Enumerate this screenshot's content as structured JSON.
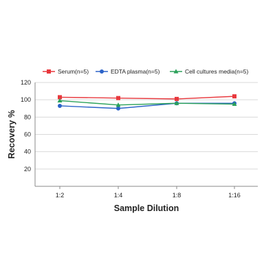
{
  "chart_data": {
    "type": "line",
    "categories": [
      "1:2",
      "1:4",
      "1:8",
      "1:16"
    ],
    "xlabel": "Sample Dilution",
    "ylabel": "Recovery %",
    "ylim": [
      0,
      120
    ],
    "yticks": [
      20,
      40,
      60,
      80,
      100,
      120
    ],
    "grid": true,
    "legend_position": "top",
    "series": [
      {
        "name": "Serum(n=5)",
        "values": [
          103,
          102,
          101,
          104
        ],
        "color": "#e8383d",
        "marker": "square"
      },
      {
        "name": "EDTA plasma(n=5)",
        "values": [
          93,
          90,
          96,
          96
        ],
        "color": "#2b63c8",
        "marker": "circle"
      },
      {
        "name": "Cell cultures media(n=5)",
        "values": [
          99,
          94,
          96,
          95
        ],
        "color": "#2ba15a",
        "marker": "triangle"
      }
    ]
  }
}
